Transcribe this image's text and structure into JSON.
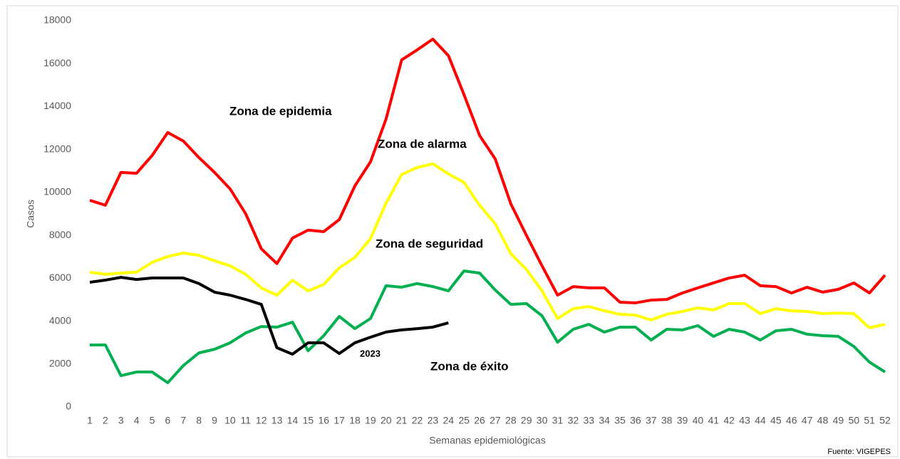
{
  "chart_data": {
    "type": "line",
    "xlabel": "Semanas epidemiológicas",
    "ylabel": "Casos",
    "categories": [
      "1",
      "2",
      "3",
      "4",
      "5",
      "6",
      "7",
      "8",
      "9",
      "10",
      "11",
      "12",
      "13",
      "14",
      "15",
      "16",
      "17",
      "18",
      "19",
      "20",
      "21",
      "22",
      "23",
      "24",
      "25",
      "26",
      "27",
      "28",
      "29",
      "30",
      "31",
      "32",
      "33",
      "34",
      "35",
      "36",
      "37",
      "38",
      "39",
      "40",
      "41",
      "42",
      "43",
      "44",
      "45",
      "46",
      "47",
      "48",
      "49",
      "50",
      "51",
      "52"
    ],
    "ylim": [
      0,
      18000
    ],
    "yticks": [
      0,
      2000,
      4000,
      6000,
      8000,
      10000,
      12000,
      14000,
      16000,
      18000
    ],
    "grid": false,
    "series": [
      {
        "color": "#ff0000",
        "values": [
          9630,
          9400,
          10930,
          10890,
          11720,
          12790,
          12390,
          11620,
          10930,
          10160,
          9000,
          7370,
          6680,
          7870,
          8240,
          8170,
          8730,
          10300,
          11420,
          13420,
          16170,
          16640,
          17140,
          16370,
          14550,
          12650,
          11560,
          9470,
          8000,
          6580,
          5210,
          5610,
          5550,
          5550,
          4880,
          4850,
          4980,
          5010,
          5310,
          5550,
          5780,
          6010,
          6140,
          5650,
          5610,
          5310,
          5580,
          5350,
          5480,
          5780,
          5310,
          6140
        ]
      },
      {
        "color": "#ffff00",
        "values": [
          6280,
          6180,
          6240,
          6280,
          6740,
          7010,
          7170,
          7070,
          6810,
          6580,
          6180,
          5550,
          5210,
          5910,
          5410,
          5710,
          6480,
          6970,
          7840,
          9500,
          10830,
          11160,
          11330,
          10860,
          10460,
          9400,
          8540,
          7140,
          6410,
          5410,
          4120,
          4580,
          4680,
          4480,
          4320,
          4280,
          4050,
          4320,
          4450,
          4620,
          4520,
          4820,
          4820,
          4350,
          4580,
          4480,
          4450,
          4350,
          4380,
          4350,
          3690,
          3850
        ]
      },
      {
        "color": "#00b050",
        "values": [
          2890,
          2890,
          1460,
          1630,
          1630,
          1130,
          1930,
          2520,
          2690,
          2990,
          3450,
          3750,
          3720,
          3950,
          2620,
          3320,
          4220,
          3650,
          4120,
          5650,
          5580,
          5750,
          5610,
          5410,
          6340,
          6240,
          5450,
          4780,
          4820,
          4250,
          3020,
          3620,
          3850,
          3490,
          3720,
          3720,
          3120,
          3620,
          3590,
          3790,
          3290,
          3620,
          3490,
          3120,
          3550,
          3620,
          3390,
          3320,
          3290,
          2820,
          2090,
          1630
        ]
      },
      {
        "name": "2023",
        "color": "#000000",
        "values": [
          5810,
          5910,
          6040,
          5940,
          6010,
          6010,
          6010,
          5750,
          5350,
          5210,
          5010,
          4780,
          2760,
          2460,
          2990,
          2990,
          2490,
          2990,
          3250,
          3490,
          3590,
          3650,
          3720,
          3920,
          null,
          null,
          null,
          null,
          null,
          null,
          null,
          null,
          null,
          null,
          null,
          null,
          null,
          null,
          null,
          null,
          null,
          null,
          null,
          null,
          null,
          null,
          null,
          null,
          null,
          null,
          null,
          null
        ]
      }
    ],
    "annotations": [
      "Zona de epidemia",
      "Zona de alarma",
      "Zona de seguridad",
      "Zona de éxito"
    ],
    "source": "Fuente: VIGEPES"
  }
}
